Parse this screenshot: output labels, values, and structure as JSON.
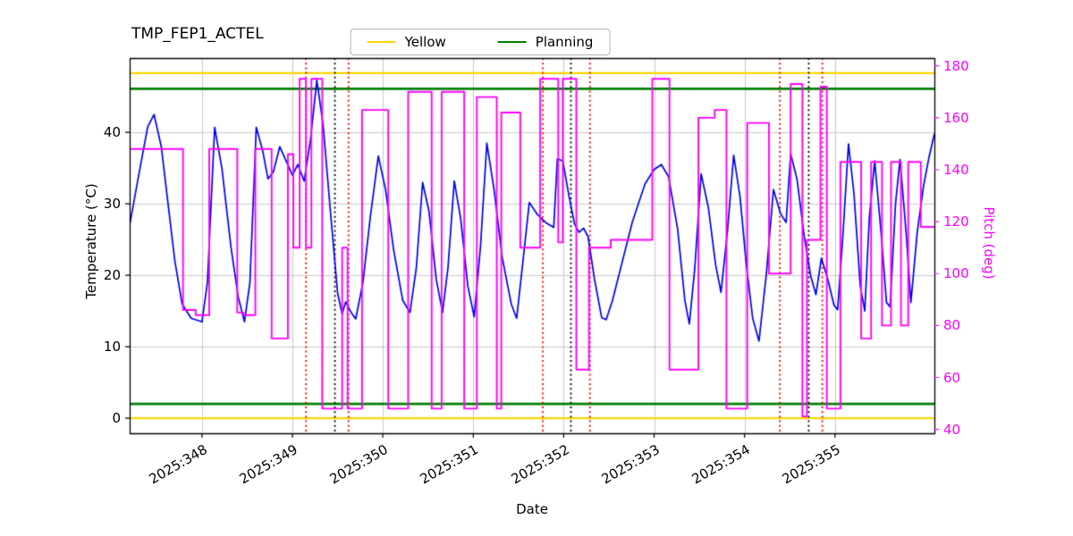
{
  "chart_data": {
    "type": "line",
    "title": "TMP_FEP1_ACTEL",
    "xlabel": "Date",
    "ylabel_left": "Temperature (°C)",
    "ylabel_right": "Pitch (deg)",
    "grid": true,
    "xlim": [
      347.2,
      356.1
    ],
    "ylim_left": [
      -2.1,
      50.4
    ],
    "ylim_right": [
      38.5,
      183
    ],
    "x_ticks": [
      348,
      349,
      350,
      351,
      352,
      353,
      354,
      355
    ],
    "x_tick_labels": [
      "2025:348",
      "2025:349",
      "2025:350",
      "2025:351",
      "2025:352",
      "2025:353",
      "2025:354",
      "2025:355"
    ],
    "y_ticks_left": [
      0,
      10,
      20,
      30,
      40
    ],
    "y_ticks_right": [
      40,
      60,
      80,
      100,
      120,
      140,
      160,
      180
    ],
    "colors": {
      "temperature": "#0000ee",
      "pitch": "#ff00ff",
      "yellow_limit": "#ffd700",
      "planning_limit": "#008000",
      "red_event": "#ff0000",
      "black_event": "#000000",
      "grid": "#c9c9c9"
    },
    "legend": {
      "position": "top",
      "entries": [
        {
          "label": "Yellow",
          "color": "#ffd700"
        },
        {
          "label": "Planning",
          "color": "#008000"
        }
      ]
    },
    "limit_lines": {
      "yellow": [
        0,
        48.3
      ],
      "planning": [
        2.0,
        46.1
      ]
    },
    "event_lines": {
      "red_dotted": [
        349.15,
        349.62,
        351.77,
        352.29,
        354.39,
        354.86
      ],
      "black_dotted": [
        349.47,
        352.08,
        354.71
      ]
    },
    "series": [
      {
        "name": "temperature",
        "axis": "left",
        "style": "line",
        "points": [
          [
            347.2,
            27.0
          ],
          [
            347.3,
            34.0
          ],
          [
            347.4,
            40.8
          ],
          [
            347.47,
            42.5
          ],
          [
            347.55,
            38.0
          ],
          [
            347.62,
            30.5
          ],
          [
            347.7,
            22.0
          ],
          [
            347.78,
            16.0
          ],
          [
            347.88,
            14.0
          ],
          [
            348.0,
            13.5
          ],
          [
            348.06,
            19.0
          ],
          [
            348.14,
            40.7
          ],
          [
            348.22,
            35.0
          ],
          [
            348.32,
            24.0
          ],
          [
            348.4,
            17.0
          ],
          [
            348.47,
            13.5
          ],
          [
            348.53,
            19.0
          ],
          [
            348.6,
            40.7
          ],
          [
            348.67,
            37.5
          ],
          [
            348.73,
            33.5
          ],
          [
            348.79,
            34.5
          ],
          [
            348.86,
            38.0
          ],
          [
            348.93,
            36.0
          ],
          [
            349.0,
            34.0
          ],
          [
            349.06,
            35.5
          ],
          [
            349.13,
            33.2
          ],
          [
            349.2,
            39.0
          ],
          [
            349.27,
            47.3
          ],
          [
            349.34,
            41.0
          ],
          [
            349.42,
            29.0
          ],
          [
            349.5,
            17.5
          ],
          [
            349.55,
            14.6
          ],
          [
            349.59,
            16.3
          ],
          [
            349.64,
            15.0
          ],
          [
            349.7,
            13.9
          ],
          [
            349.78,
            19.0
          ],
          [
            349.86,
            28.0
          ],
          [
            349.95,
            36.7
          ],
          [
            350.03,
            32.0
          ],
          [
            350.12,
            23.5
          ],
          [
            350.22,
            16.5
          ],
          [
            350.3,
            14.8
          ],
          [
            350.37,
            21.0
          ],
          [
            350.44,
            33.0
          ],
          [
            350.51,
            29.0
          ],
          [
            350.59,
            19.5
          ],
          [
            350.66,
            14.8
          ],
          [
            350.72,
            21.0
          ],
          [
            350.79,
            33.2
          ],
          [
            350.86,
            28.0
          ],
          [
            350.94,
            18.5
          ],
          [
            351.01,
            14.2
          ],
          [
            351.08,
            24.0
          ],
          [
            351.15,
            38.5
          ],
          [
            351.23,
            32.0
          ],
          [
            351.32,
            22.5
          ],
          [
            351.42,
            16.0
          ],
          [
            351.48,
            14.0
          ],
          [
            351.55,
            22.0
          ],
          [
            351.62,
            30.2
          ],
          [
            351.71,
            28.5
          ],
          [
            351.81,
            27.3
          ],
          [
            351.89,
            26.7
          ],
          [
            351.93,
            36.3
          ],
          [
            351.99,
            36.0
          ],
          [
            352.06,
            31.0
          ],
          [
            352.12,
            27.2
          ],
          [
            352.17,
            26.0
          ],
          [
            352.22,
            26.6
          ],
          [
            352.27,
            25.4
          ],
          [
            352.34,
            19.5
          ],
          [
            352.42,
            14.1
          ],
          [
            352.47,
            13.8
          ],
          [
            352.54,
            16.5
          ],
          [
            352.64,
            21.5
          ],
          [
            352.76,
            27.5
          ],
          [
            352.9,
            32.8
          ],
          [
            353.0,
            34.8
          ],
          [
            353.08,
            35.5
          ],
          [
            353.16,
            33.8
          ],
          [
            353.26,
            26.5
          ],
          [
            353.34,
            16.5
          ],
          [
            353.39,
            13.2
          ],
          [
            353.45,
            21.0
          ],
          [
            353.52,
            34.2
          ],
          [
            353.6,
            29.5
          ],
          [
            353.68,
            21.5
          ],
          [
            353.74,
            17.6
          ],
          [
            353.81,
            26.0
          ],
          [
            353.88,
            36.8
          ],
          [
            353.95,
            31.0
          ],
          [
            354.02,
            21.5
          ],
          [
            354.09,
            14.0
          ],
          [
            354.16,
            10.8
          ],
          [
            354.24,
            20.0
          ],
          [
            354.32,
            32.0
          ],
          [
            354.4,
            28.6
          ],
          [
            354.46,
            27.4
          ],
          [
            354.51,
            37.0
          ],
          [
            354.58,
            33.5
          ],
          [
            354.66,
            25.5
          ],
          [
            354.73,
            20.0
          ],
          [
            354.79,
            17.3
          ],
          [
            354.85,
            22.4
          ],
          [
            354.92,
            19.5
          ],
          [
            354.99,
            15.8
          ],
          [
            355.03,
            15.2
          ],
          [
            355.09,
            26.0
          ],
          [
            355.15,
            38.4
          ],
          [
            355.21,
            31.5
          ],
          [
            355.28,
            18.5
          ],
          [
            355.33,
            15.0
          ],
          [
            355.38,
            28.0
          ],
          [
            355.44,
            36.0
          ],
          [
            355.51,
            26.0
          ],
          [
            355.57,
            16.2
          ],
          [
            355.61,
            15.6
          ],
          [
            355.67,
            30.0
          ],
          [
            355.72,
            36.2
          ],
          [
            355.79,
            25.5
          ],
          [
            355.84,
            16.2
          ],
          [
            355.91,
            26.0
          ],
          [
            355.98,
            32.5
          ],
          [
            356.04,
            36.5
          ],
          [
            356.1,
            39.8
          ]
        ]
      },
      {
        "name": "pitch",
        "axis": "right",
        "style": "step",
        "points": [
          [
            347.2,
            148
          ],
          [
            347.79,
            86
          ],
          [
            347.93,
            84
          ],
          [
            348.08,
            148
          ],
          [
            348.39,
            85
          ],
          [
            348.46,
            84
          ],
          [
            348.59,
            148
          ],
          [
            348.77,
            75
          ],
          [
            348.95,
            146
          ],
          [
            349.01,
            110
          ],
          [
            349.08,
            175
          ],
          [
            349.15,
            110
          ],
          [
            349.21,
            175
          ],
          [
            349.33,
            48
          ],
          [
            349.55,
            110
          ],
          [
            349.61,
            48
          ],
          [
            349.77,
            163
          ],
          [
            350.06,
            48
          ],
          [
            350.28,
            170
          ],
          [
            350.54,
            48
          ],
          [
            350.65,
            170
          ],
          [
            350.9,
            48
          ],
          [
            351.04,
            168
          ],
          [
            351.26,
            48
          ],
          [
            351.31,
            162
          ],
          [
            351.52,
            110
          ],
          [
            351.74,
            175
          ],
          [
            351.94,
            112
          ],
          [
            351.99,
            175
          ],
          [
            352.14,
            63
          ],
          [
            352.28,
            110
          ],
          [
            352.52,
            113
          ],
          [
            352.98,
            175
          ],
          [
            353.17,
            63
          ],
          [
            353.49,
            160
          ],
          [
            353.67,
            163
          ],
          [
            353.8,
            48
          ],
          [
            354.03,
            158
          ],
          [
            354.27,
            100
          ],
          [
            354.51,
            173
          ],
          [
            354.64,
            45
          ],
          [
            354.69,
            113
          ],
          [
            354.84,
            172
          ],
          [
            354.91,
            48
          ],
          [
            355.06,
            143
          ],
          [
            355.29,
            75
          ],
          [
            355.4,
            143
          ],
          [
            355.52,
            80
          ],
          [
            355.62,
            143
          ],
          [
            355.73,
            80
          ],
          [
            355.81,
            143
          ],
          [
            355.95,
            118
          ],
          [
            356.1,
            118
          ]
        ]
      }
    ]
  }
}
